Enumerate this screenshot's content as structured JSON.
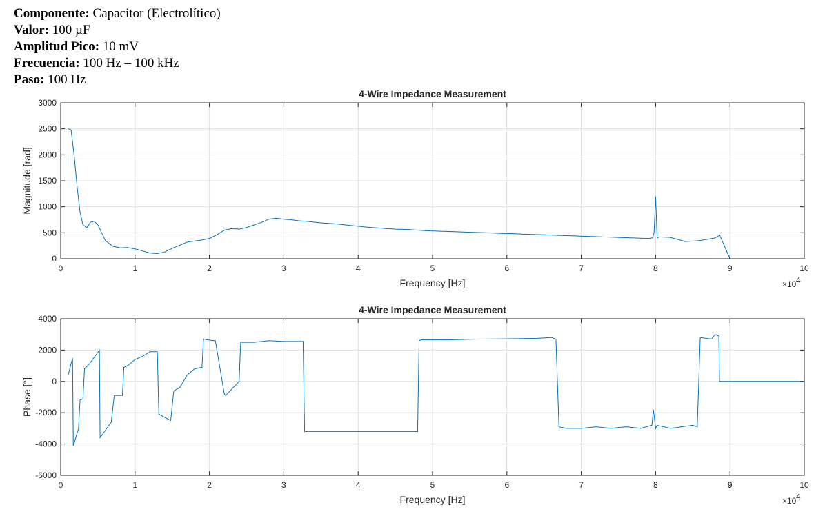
{
  "header": {
    "rows": [
      {
        "label": "Componente:",
        "value": "Capacitor (Electrolítico)"
      },
      {
        "label": "Valor:",
        "value": "100 µF"
      },
      {
        "label": "Amplitud Pico:",
        "value": "10 mV"
      },
      {
        "label": "Frecuencia:",
        "value": "100 Hz – 100 kHz"
      },
      {
        "label": "Paso:",
        "value": "100 Hz"
      }
    ]
  },
  "chart_data": [
    {
      "type": "line",
      "title": "4-Wire Impedance Measurement",
      "xlabel": "Frequency [Hz]",
      "ylabel": "Magnitude [rad]",
      "x_exponent_label": "×10",
      "x_exponent": "4",
      "xlim": [
        0,
        100000
      ],
      "ylim": [
        0,
        3000
      ],
      "xticks": [
        "0",
        "1",
        "2",
        "3",
        "4",
        "5",
        "6",
        "7",
        "8",
        "9",
        "10"
      ],
      "yticks": [
        "0",
        "500",
        "1000",
        "1500",
        "2000",
        "2500",
        "3000"
      ],
      "grid": true,
      "color": "#0072bd",
      "series": [
        {
          "x": [
            1000,
            1400,
            1800,
            2200,
            2600,
            3000,
            3500,
            4000,
            4500,
            5000,
            5500,
            6000,
            7000,
            8000,
            9000,
            10000,
            11000,
            12000,
            13000,
            14000,
            15000,
            16000,
            17000,
            18000,
            19000,
            20000,
            21000,
            22000,
            23000,
            24000,
            25000,
            26000,
            27000,
            28000,
            29000,
            30000,
            31000,
            32000,
            33000,
            35000,
            37000,
            39000,
            41000,
            43000,
            45000,
            47000,
            49000,
            51000,
            53000,
            55000,
            57000,
            59000,
            61000,
            63000,
            65000,
            67000,
            69000,
            71000,
            73000,
            75000,
            77000,
            79000,
            79600,
            79800,
            80000,
            80200,
            80500,
            82000,
            84000,
            86000,
            88000,
            88500,
            88600,
            90000,
            92000,
            95000,
            98000,
            100000
          ],
          "y": [
            2500,
            2480,
            2000,
            1400,
            900,
            650,
            600,
            700,
            720,
            650,
            500,
            350,
            240,
            210,
            215,
            190,
            150,
            110,
            100,
            130,
            200,
            260,
            320,
            340,
            360,
            390,
            460,
            550,
            580,
            570,
            600,
            650,
            700,
            760,
            780,
            760,
            750,
            730,
            720,
            690,
            670,
            640,
            610,
            590,
            570,
            560,
            540,
            530,
            520,
            510,
            500,
            490,
            480,
            470,
            460,
            450,
            440,
            430,
            420,
            410,
            400,
            390,
            400,
            500,
            1200,
            400,
            420,
            410,
            330,
            350,
            400,
            440,
            460,
            0,
            0,
            0,
            0,
            0
          ]
        }
      ]
    },
    {
      "type": "line",
      "title": "4-Wire Impedance Measurement",
      "xlabel": "Frequency [Hz]",
      "ylabel": "Phase [°]",
      "x_exponent_label": "×10",
      "x_exponent": "4",
      "xlim": [
        0,
        100000
      ],
      "ylim": [
        -6000,
        4000
      ],
      "xticks": [
        "0",
        "1",
        "2",
        "3",
        "4",
        "5",
        "6",
        "7",
        "8",
        "9",
        "10"
      ],
      "yticks": [
        "-6000",
        "-4000",
        "-2000",
        "0",
        "2000",
        "4000"
      ],
      "grid": true,
      "color": "#0072bd",
      "series": [
        {
          "x": [
            1000,
            1600,
            1700,
            2400,
            2600,
            3000,
            3200,
            4000,
            5200,
            5300,
            6800,
            7200,
            7400,
            8300,
            8500,
            9000,
            10000,
            11000,
            12000,
            13000,
            13200,
            14000,
            14800,
            15200,
            16000,
            17000,
            18000,
            19000,
            19200,
            20500,
            20800,
            22000,
            22200,
            22800,
            24000,
            24200,
            24400,
            26000,
            28000,
            30000,
            32000,
            32600,
            32800,
            36000,
            40000,
            44000,
            48000,
            48200,
            48400,
            52000,
            56000,
            60000,
            64000,
            66000,
            66600,
            67000,
            68000,
            70000,
            72000,
            74000,
            76000,
            78000,
            79500,
            79700,
            80000,
            80200,
            82000,
            85000,
            85600,
            86000,
            87500,
            88000,
            88500,
            88600,
            100000
          ],
          "y": [
            400,
            1500,
            -4100,
            -3000,
            -1200,
            -1100,
            800,
            1200,
            2000,
            -3600,
            -2600,
            -900,
            -900,
            -900,
            900,
            1000,
            1400,
            1600,
            1900,
            1900,
            -2100,
            -2300,
            -2500,
            -600,
            -400,
            400,
            800,
            900,
            2700,
            2600,
            2600,
            -800,
            -900,
            -600,
            0,
            2500,
            2500,
            2500,
            2600,
            2550,
            2550,
            2550,
            -3200,
            -3200,
            -3200,
            -3200,
            -3200,
            2600,
            2650,
            2650,
            2700,
            2720,
            2750,
            2800,
            2700,
            -2900,
            -3000,
            -3000,
            -2900,
            -3000,
            -2900,
            -3000,
            -2800,
            -1800,
            -3000,
            -2800,
            -3000,
            -2800,
            -2900,
            2800,
            2700,
            3000,
            2900,
            0,
            0
          ]
        }
      ]
    }
  ]
}
